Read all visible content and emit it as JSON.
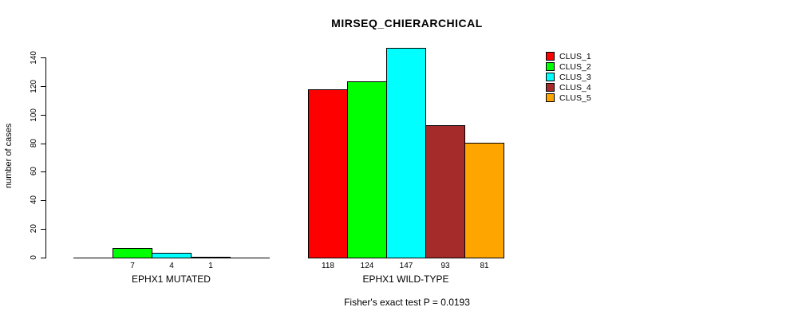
{
  "chart_data": {
    "type": "bar",
    "title": "MIRSEQ_CHIERARCHICAL",
    "ylabel": "number of cases",
    "ylim": [
      0,
      140
    ],
    "yticks": [
      0,
      20,
      40,
      60,
      80,
      100,
      120,
      140
    ],
    "grid": false,
    "legend_position": "top-right",
    "clusters": [
      {
        "name": "CLUS_1",
        "color": "#FF0000"
      },
      {
        "name": "CLUS_2",
        "color": "#00FF00"
      },
      {
        "name": "CLUS_3",
        "color": "#00FFFF"
      },
      {
        "name": "CLUS_4",
        "color": "#A52A2A"
      },
      {
        "name": "CLUS_5",
        "color": "#FFA500"
      }
    ],
    "groups": [
      {
        "label": "EPHX1 MUTATED",
        "values": [
          0,
          7,
          4,
          1,
          0
        ],
        "shown_value_labels": [
          "",
          "7",
          "4",
          "1",
          ""
        ]
      },
      {
        "label": "EPHX1 WILD-TYPE",
        "values": [
          118,
          124,
          147,
          93,
          81
        ],
        "shown_value_labels": [
          "118",
          "124",
          "147",
          "93",
          "81"
        ]
      }
    ],
    "annotation": "Fisher's exact test P = 0.0193"
  }
}
